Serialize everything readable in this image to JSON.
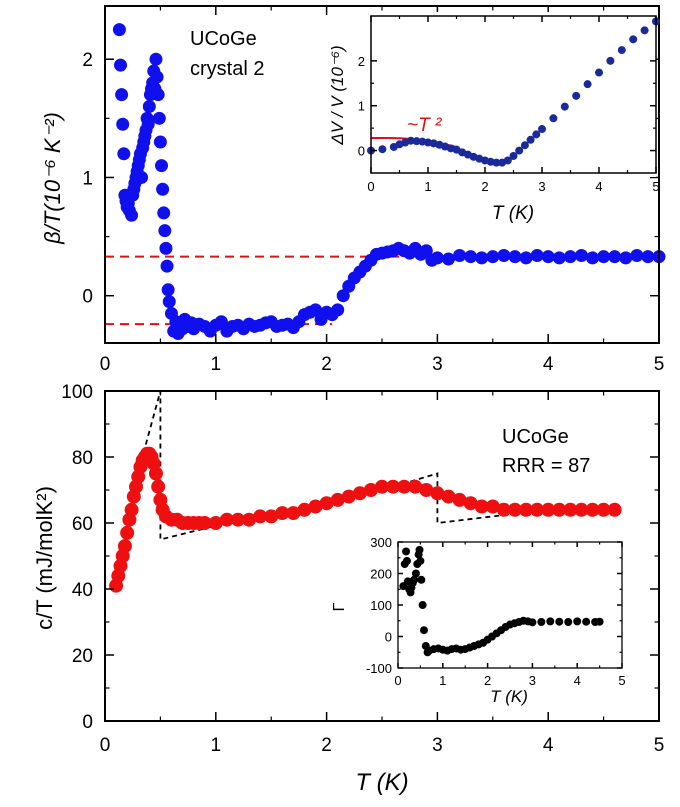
{
  "chart_data": [
    {
      "id": "top-main",
      "type": "scatter",
      "ylabel": "β/T(10⁻⁶ K⁻²)",
      "xlabel": "",
      "xlim": [
        0,
        5
      ],
      "ylim": [
        -0.4,
        2.45
      ],
      "xticks": [
        "0",
        "1",
        "2",
        "3",
        "4",
        "5"
      ],
      "yticks": [
        "0",
        "1",
        "2"
      ],
      "annotations": [
        "UCoGe",
        "crystal 2"
      ],
      "colors": {
        "markers": "#1010ee",
        "reference_lines": "#e01010"
      },
      "reference_lines_y": [
        0.33,
        -0.24
      ],
      "series": [
        {
          "x": [
            0.13,
            0.14,
            0.15,
            0.16,
            0.17,
            0.18,
            0.19,
            0.2,
            0.21,
            0.22,
            0.24,
            0.25,
            0.26,
            0.27,
            0.28,
            0.29,
            0.3,
            0.31,
            0.32,
            0.33,
            0.34,
            0.35,
            0.36,
            0.37,
            0.38,
            0.39,
            0.4,
            0.41,
            0.42,
            0.43,
            0.44,
            0.45,
            0.46,
            0.47,
            0.48,
            0.49,
            0.5,
            0.51,
            0.52,
            0.53,
            0.54,
            0.55,
            0.56,
            0.57,
            0.58,
            0.6,
            0.62,
            0.64,
            0.66,
            0.68,
            0.7,
            0.72,
            0.75,
            0.78,
            0.8,
            0.85,
            0.9,
            0.95,
            1.0,
            1.05,
            1.1,
            1.15,
            1.2,
            1.25,
            1.3,
            1.35,
            1.4,
            1.45,
            1.5,
            1.55,
            1.6,
            1.65,
            1.7,
            1.75,
            1.8,
            1.85,
            1.9,
            1.95,
            2.0,
            2.05,
            2.1,
            2.15,
            2.2,
            2.25,
            2.3,
            2.35,
            2.4,
            2.45,
            2.5,
            2.55,
            2.6,
            2.65,
            2.7,
            2.75,
            2.8,
            2.85,
            2.9,
            2.95,
            3.0,
            3.1,
            3.2,
            3.3,
            3.4,
            3.5,
            3.6,
            3.7,
            3.8,
            3.9,
            4.0,
            4.1,
            4.2,
            4.3,
            4.4,
            4.5,
            4.6,
            4.7,
            4.8,
            4.9,
            5.0
          ],
          "y": [
            2.25,
            1.95,
            1.7,
            1.45,
            1.2,
            0.85,
            0.8,
            0.75,
            0.78,
            0.72,
            0.68,
            0.85,
            0.9,
            0.95,
            1.0,
            1.05,
            1.1,
            1.15,
            1.2,
            1.0,
            1.25,
            1.3,
            1.35,
            1.4,
            1.5,
            1.45,
            1.6,
            1.7,
            1.75,
            1.8,
            1.9,
            1.75,
            2.0,
            1.85,
            1.7,
            1.5,
            1.3,
            1.1,
            0.9,
            0.7,
            0.55,
            0.4,
            0.25,
            0.05,
            -0.05,
            -0.15,
            -0.3,
            -0.22,
            -0.32,
            -0.25,
            -0.28,
            -0.2,
            -0.26,
            -0.23,
            -0.28,
            -0.24,
            -0.26,
            -0.3,
            -0.25,
            -0.22,
            -0.3,
            -0.26,
            -0.25,
            -0.28,
            -0.24,
            -0.26,
            -0.25,
            -0.23,
            -0.22,
            -0.26,
            -0.25,
            -0.24,
            -0.27,
            -0.22,
            -0.16,
            -0.14,
            -0.12,
            -0.2,
            -0.14,
            -0.16,
            -0.12,
            0.0,
            0.08,
            0.15,
            0.2,
            0.25,
            0.3,
            0.35,
            0.36,
            0.37,
            0.38,
            0.4,
            0.38,
            0.36,
            0.4,
            0.35,
            0.38,
            0.3,
            0.32,
            0.31,
            0.34,
            0.33,
            0.32,
            0.33,
            0.34,
            0.33,
            0.32,
            0.34,
            0.33,
            0.32,
            0.33,
            0.34,
            0.32,
            0.33,
            0.33,
            0.32,
            0.34,
            0.33,
            0.33
          ]
        }
      ]
    },
    {
      "id": "top-inset",
      "type": "scatter",
      "ylabel": "ΔV / V (10⁻⁶)",
      "xlabel": "T (K)",
      "xlim": [
        0,
        5
      ],
      "ylim": [
        -0.5,
        3.0
      ],
      "xticks": [
        "0",
        "1",
        "2",
        "3",
        "4",
        "5"
      ],
      "yticks": [
        "0",
        "1",
        "2"
      ],
      "annotations": [
        "~T ²"
      ],
      "colors": {
        "markers": "#1a2a9a",
        "fit": "#e01010"
      },
      "series": [
        {
          "x": [
            0.0,
            0.2,
            0.4,
            0.5,
            0.6,
            0.7,
            0.8,
            0.9,
            1.0,
            1.1,
            1.2,
            1.3,
            1.4,
            1.5,
            1.6,
            1.7,
            1.8,
            1.9,
            2.0,
            2.1,
            2.2,
            2.3,
            2.4,
            2.5,
            2.6,
            2.7,
            2.8,
            2.9,
            3.0,
            3.2,
            3.4,
            3.6,
            3.8,
            4.0,
            4.2,
            4.4,
            4.6,
            4.8,
            5.0
          ],
          "y": [
            0.0,
            0.03,
            0.08,
            0.14,
            0.18,
            0.22,
            0.21,
            0.2,
            0.18,
            0.16,
            0.13,
            0.09,
            0.05,
            0.02,
            -0.04,
            -0.09,
            -0.14,
            -0.18,
            -0.22,
            -0.25,
            -0.27,
            -0.27,
            -0.22,
            -0.12,
            0.0,
            0.12,
            0.24,
            0.36,
            0.48,
            0.72,
            0.98,
            1.22,
            1.48,
            1.74,
            2.0,
            2.24,
            2.48,
            2.68,
            2.88
          ]
        }
      ]
    },
    {
      "id": "bottom-main",
      "type": "scatter",
      "ylabel": "c/T (mJ/molK²)",
      "xlabel": "T (K)",
      "xlim": [
        0,
        5
      ],
      "ylim": [
        0,
        100
      ],
      "xticks": [
        "0",
        "1",
        "2",
        "3",
        "4",
        "5"
      ],
      "yticks": [
        "0",
        "20",
        "40",
        "60",
        "80",
        "100"
      ],
      "annotations": [
        "UCoGe",
        "RRR = 87"
      ],
      "colors": {
        "markers": "#ee1010",
        "construction": "#000000"
      },
      "series": [
        {
          "x": [
            0.1,
            0.12,
            0.14,
            0.16,
            0.18,
            0.2,
            0.22,
            0.24,
            0.26,
            0.28,
            0.3,
            0.32,
            0.34,
            0.36,
            0.38,
            0.4,
            0.42,
            0.44,
            0.46,
            0.48,
            0.5,
            0.52,
            0.55,
            0.6,
            0.65,
            0.7,
            0.75,
            0.8,
            0.85,
            0.9,
            1.0,
            1.1,
            1.2,
            1.3,
            1.4,
            1.5,
            1.6,
            1.7,
            1.8,
            1.9,
            2.0,
            2.1,
            2.2,
            2.3,
            2.4,
            2.5,
            2.6,
            2.7,
            2.8,
            2.9,
            3.0,
            3.1,
            3.2,
            3.3,
            3.4,
            3.5,
            3.6,
            3.7,
            3.8,
            3.9,
            4.0,
            4.1,
            4.2,
            4.3,
            4.4,
            4.5,
            4.6
          ],
          "y": [
            41,
            44,
            47,
            50,
            53,
            57,
            61,
            64,
            68,
            71,
            74,
            77,
            79,
            80,
            81,
            81,
            80,
            78,
            75,
            71,
            67,
            64,
            62,
            61,
            61,
            60,
            60,
            60,
            60,
            60,
            60,
            61,
            61,
            61,
            62,
            62,
            63,
            63,
            64,
            65,
            66,
            67,
            68,
            69,
            70,
            71,
            71,
            71,
            71,
            70,
            69,
            68,
            67,
            66,
            65,
            65,
            64,
            64,
            64,
            64,
            64,
            64,
            64,
            64,
            64,
            64,
            64
          ]
        }
      ]
    },
    {
      "id": "bottom-inset",
      "type": "scatter",
      "ylabel": "Γ",
      "xlabel": "T (K)",
      "xlim": [
        0,
        5
      ],
      "ylim": [
        -100,
        300
      ],
      "xticks": [
        "0",
        "1",
        "2",
        "3",
        "4",
        "5"
      ],
      "yticks": [
        "-100",
        "0",
        "100",
        "200",
        "300"
      ],
      "colors": {
        "markers": "#000000"
      },
      "series": [
        {
          "x": [
            0.12,
            0.15,
            0.18,
            0.2,
            0.22,
            0.25,
            0.28,
            0.3,
            0.33,
            0.36,
            0.4,
            0.43,
            0.46,
            0.48,
            0.5,
            0.52,
            0.55,
            0.58,
            0.62,
            0.66,
            0.7,
            0.8,
            0.9,
            1.0,
            1.1,
            1.2,
            1.3,
            1.4,
            1.5,
            1.6,
            1.7,
            1.8,
            1.9,
            2.0,
            2.1,
            2.2,
            2.3,
            2.4,
            2.5,
            2.6,
            2.7,
            2.8,
            2.9,
            3.0,
            3.2,
            3.4,
            3.6,
            3.8,
            4.0,
            4.2,
            4.4,
            4.5
          ],
          "y": [
            160,
            230,
            270,
            240,
            175,
            150,
            140,
            155,
            170,
            180,
            200,
            230,
            260,
            275,
            240,
            180,
            100,
            20,
            -30,
            -50,
            -45,
            -40,
            -38,
            -42,
            -45,
            -40,
            -38,
            -42,
            -40,
            -35,
            -30,
            -25,
            -20,
            -10,
            0,
            10,
            20,
            30,
            38,
            42,
            46,
            50,
            48,
            45,
            46,
            48,
            47,
            46,
            48,
            47,
            46,
            47
          ]
        }
      ]
    }
  ]
}
